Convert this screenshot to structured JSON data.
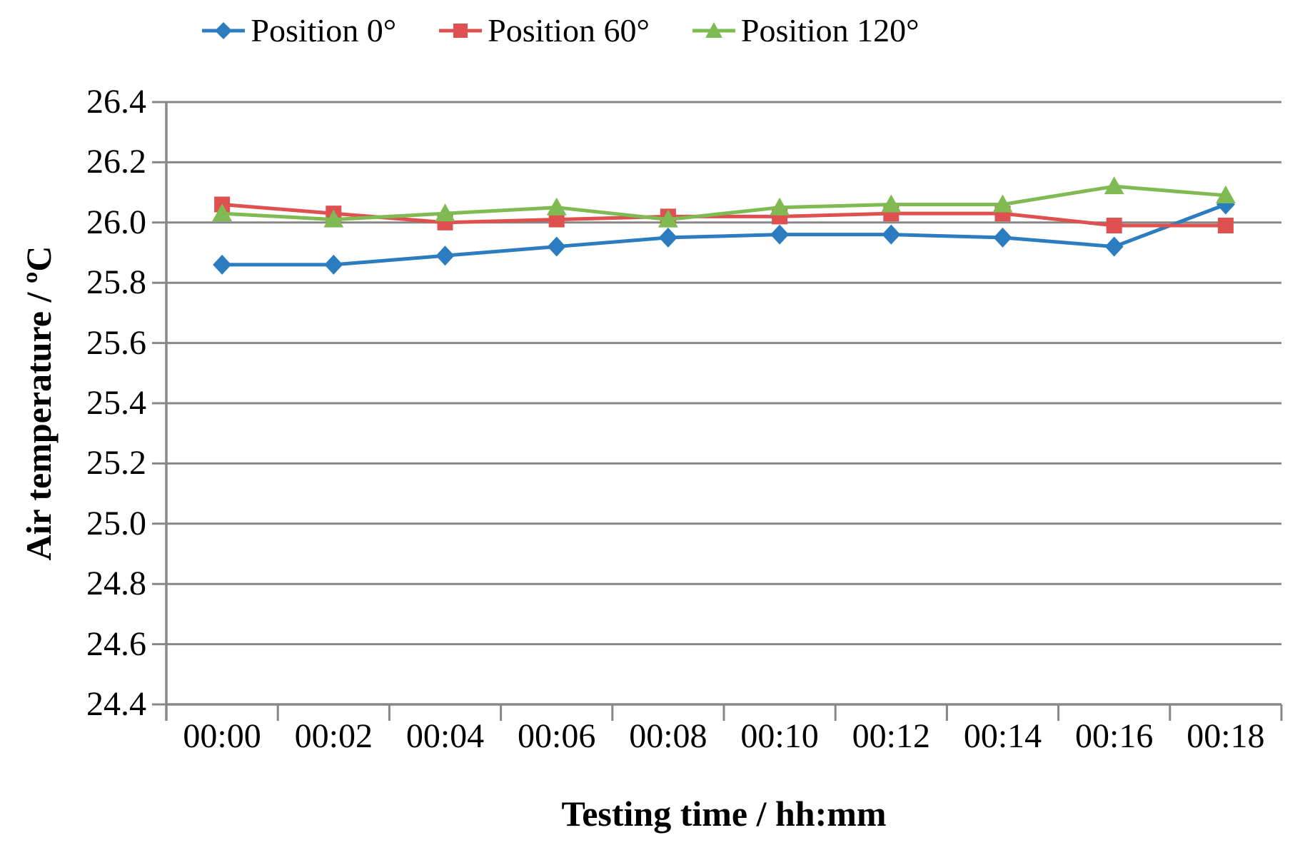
{
  "chart_data": {
    "type": "line",
    "title": "",
    "xlabel": "Testing time / hh:mm",
    "ylabel": "Air temperature / ºC",
    "categories": [
      "00:00",
      "00:02",
      "00:04",
      "00:06",
      "00:08",
      "00:10",
      "00:12",
      "00:14",
      "00:16",
      "00:18"
    ],
    "series": [
      {
        "name": "Position 0°",
        "marker": "diamond",
        "color": "#2C7CC0",
        "values": [
          25.86,
          25.86,
          25.89,
          25.92,
          25.95,
          25.96,
          25.96,
          25.95,
          25.92,
          26.06
        ]
      },
      {
        "name": "Position 60°",
        "marker": "square",
        "color": "#DF5050",
        "values": [
          26.06,
          26.03,
          26.0,
          26.01,
          26.02,
          26.02,
          26.03,
          26.03,
          25.99,
          25.99
        ]
      },
      {
        "name": "Position 120°",
        "marker": "triangle-up",
        "color": "#7FBA52",
        "values": [
          26.03,
          26.01,
          26.03,
          26.05,
          26.01,
          26.05,
          26.06,
          26.06,
          26.12,
          26.09
        ]
      }
    ],
    "ylim": [
      24.4,
      26.4
    ],
    "ytick_step": 0.2,
    "y_tick_labels": [
      "26.4",
      "26.2",
      "26.0",
      "25.8",
      "25.6",
      "25.4",
      "25.2",
      "25.0",
      "24.8",
      "24.6",
      "24.4"
    ],
    "grid": true,
    "grid_color": "#878787",
    "axis_color": "#878787",
    "background_color": "#FFFFFF",
    "legend_position": "top"
  }
}
